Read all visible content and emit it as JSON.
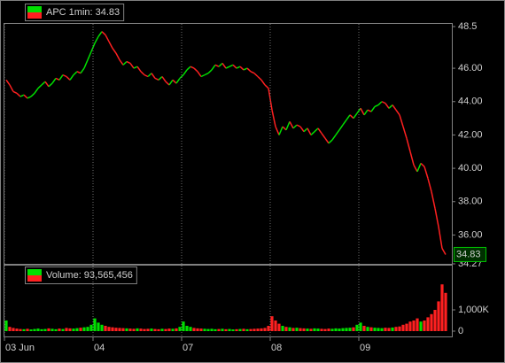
{
  "chart_data": [
    {
      "type": "line",
      "up_color": "#00e000",
      "down_color": "#ff2020",
      "series": [
        {
          "name": "APC 1min: 34.83",
          "values": [
            45.3,
            45.0,
            44.6,
            44.5,
            44.3,
            44.4,
            44.2,
            44.3,
            44.5,
            44.8,
            45.0,
            45.2,
            44.9,
            45.1,
            45.4,
            45.3,
            45.6,
            45.5,
            45.3,
            45.6,
            45.8,
            45.7,
            46.0,
            46.5,
            47.0,
            47.5,
            47.9,
            48.2,
            48.0,
            47.6,
            47.2,
            46.9,
            46.5,
            46.2,
            46.4,
            46.3,
            46.0,
            46.1,
            45.8,
            45.6,
            45.5,
            45.7,
            45.4,
            45.3,
            45.5,
            45.2,
            45.0,
            45.3,
            45.1,
            45.4,
            45.6,
            45.9,
            46.1,
            46.0,
            45.8,
            45.5,
            45.6,
            45.7,
            45.9,
            46.2,
            46.1,
            46.3,
            46.0,
            46.1,
            46.2,
            46.0,
            46.1,
            45.9,
            46.0,
            45.8,
            45.7,
            45.5,
            45.3,
            45.0,
            44.8,
            43.5,
            42.5,
            42.0,
            42.5,
            42.3,
            42.8,
            42.4,
            42.6,
            42.5,
            42.2,
            42.4,
            42.0,
            42.2,
            42.4,
            42.1,
            41.8,
            41.5,
            41.7,
            42.0,
            42.3,
            42.6,
            42.9,
            43.2,
            43.0,
            43.3,
            43.6,
            43.2,
            43.5,
            43.4,
            43.7,
            43.8,
            44.0,
            43.9,
            43.6,
            43.8,
            43.5,
            43.2,
            42.5,
            41.8,
            41.0,
            40.2,
            39.8,
            40.3,
            40.1,
            39.4,
            38.6,
            37.6,
            36.5,
            35.2,
            34.83
          ]
        }
      ],
      "last_price": 34.83,
      "ylim": [
        34.27,
        48.5
      ],
      "yticks": [
        48.5,
        {
          "value": 46,
          "label": "46.00"
        },
        {
          "value": 44,
          "label": "44.00"
        },
        {
          "value": 42,
          "label": "42.00"
        },
        {
          "value": 40,
          "label": "40.00"
        },
        {
          "value": 38,
          "label": "38.00"
        },
        {
          "value": 36,
          "label": "36.00"
        },
        34.27
      ]
    },
    {
      "type": "bar",
      "up_color": "#00e000",
      "down_color": "#ff2020",
      "series": [
        {
          "name": "Volume: 93,565,456",
          "values": [
            500000,
            200000,
            150000,
            120000,
            100000,
            90000,
            110000,
            80000,
            100000,
            120000,
            90000,
            100000,
            130000,
            110000,
            90000,
            120000,
            100000,
            150000,
            130000,
            120000,
            140000,
            160000,
            180000,
            200000,
            300000,
            600000,
            400000,
            300000,
            250000,
            200000,
            180000,
            160000,
            150000,
            140000,
            130000,
            120000,
            110000,
            130000,
            120000,
            100000,
            110000,
            120000,
            100000,
            90000,
            110000,
            100000,
            120000,
            110000,
            130000,
            200000,
            450000,
            250000,
            200000,
            150000,
            130000,
            120000,
            110000,
            100000,
            110000,
            90000,
            100000,
            110000,
            90000,
            100000,
            80000,
            90000,
            100000,
            110000,
            90000,
            100000,
            110000,
            120000,
            130000,
            150000,
            250000,
            700000,
            500000,
            350000,
            250000,
            200000,
            180000,
            150000,
            160000,
            140000,
            130000,
            120000,
            110000,
            130000,
            120000,
            110000,
            100000,
            120000,
            110000,
            130000,
            120000,
            140000,
            150000,
            160000,
            180000,
            300000,
            400000,
            250000,
            200000,
            180000,
            160000,
            150000,
            140000,
            160000,
            150000,
            170000,
            200000,
            220000,
            300000,
            350000,
            450000,
            500000,
            600000,
            450000,
            500000,
            650000,
            800000,
            1000000,
            1400000,
            2200000,
            1800000
          ]
        }
      ],
      "ylim": [
        0,
        3000000
      ],
      "yticks": [
        {
          "value": 1000000,
          "label": "1,000K"
        },
        0
      ],
      "xticks": [
        {
          "value": 0,
          "label": "03 Jun"
        },
        {
          "value": 25,
          "label": "04"
        },
        {
          "value": 50,
          "label": "07"
        },
        {
          "value": 75,
          "label": "08"
        },
        {
          "value": 100,
          "label": "09"
        }
      ]
    }
  ]
}
